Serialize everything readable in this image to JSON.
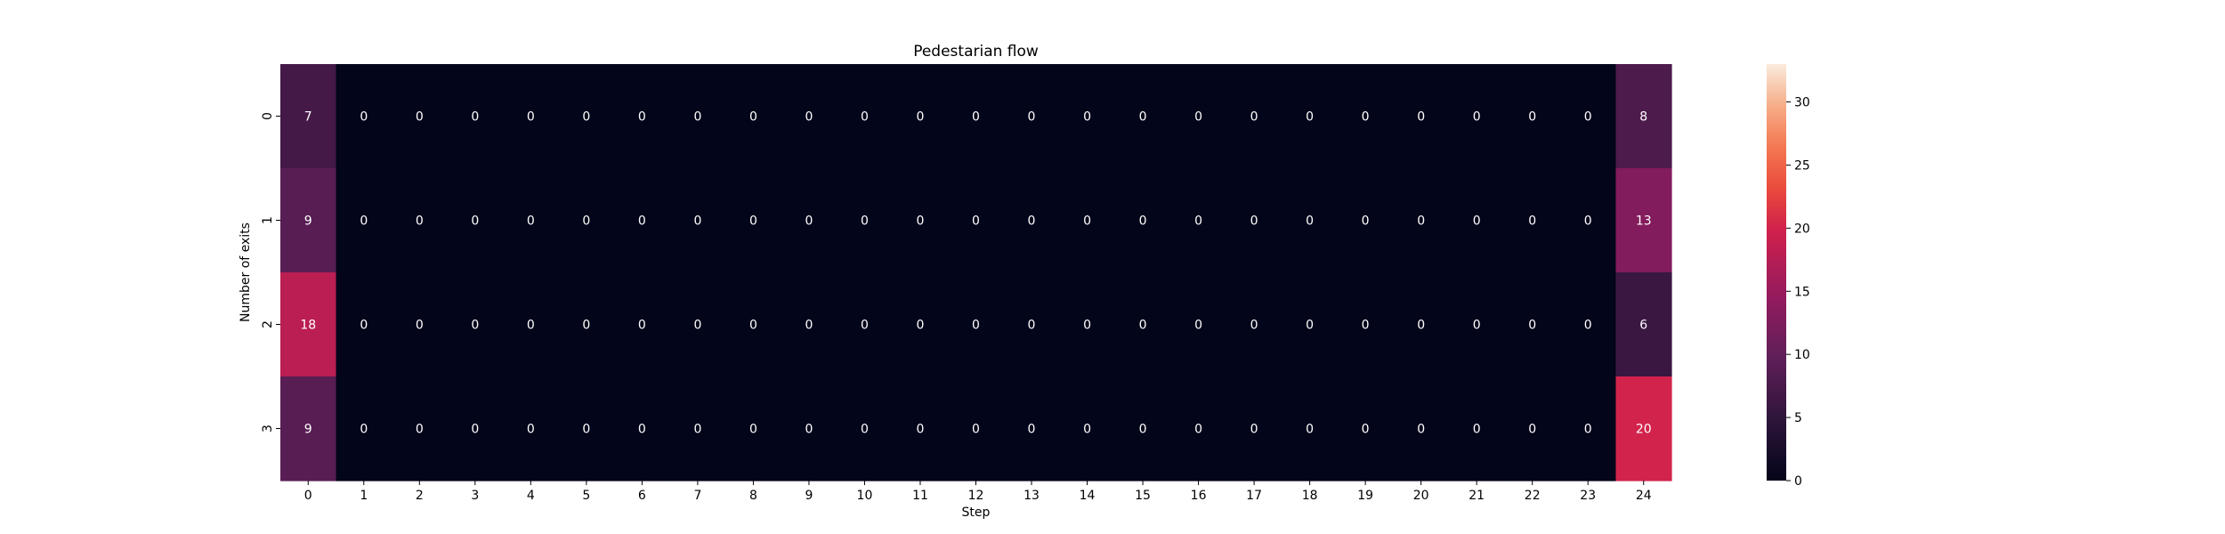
{
  "chart_data": {
    "type": "heatmap",
    "title": "Pedestarian flow",
    "xlabel": "Step",
    "ylabel": "Number of exits",
    "x_categories": [
      "0",
      "1",
      "2",
      "3",
      "4",
      "5",
      "6",
      "7",
      "8",
      "9",
      "10",
      "11",
      "12",
      "13",
      "14",
      "15",
      "16",
      "17",
      "18",
      "19",
      "20",
      "21",
      "22",
      "23",
      "24"
    ],
    "y_categories": [
      "0",
      "1",
      "2",
      "3"
    ],
    "values": [
      [
        7,
        0,
        0,
        0,
        0,
        0,
        0,
        0,
        0,
        0,
        0,
        0,
        0,
        0,
        0,
        0,
        0,
        0,
        0,
        0,
        0,
        0,
        0,
        0,
        8
      ],
      [
        9,
        0,
        0,
        0,
        0,
        0,
        0,
        0,
        0,
        0,
        0,
        0,
        0,
        0,
        0,
        0,
        0,
        0,
        0,
        0,
        0,
        0,
        0,
        0,
        13
      ],
      [
        18,
        0,
        0,
        0,
        0,
        0,
        0,
        0,
        0,
        0,
        0,
        0,
        0,
        0,
        0,
        0,
        0,
        0,
        0,
        0,
        0,
        0,
        0,
        0,
        6
      ],
      [
        9,
        0,
        0,
        0,
        0,
        0,
        0,
        0,
        0,
        0,
        0,
        0,
        0,
        0,
        0,
        0,
        0,
        0,
        0,
        0,
        0,
        0,
        0,
        0,
        20
      ]
    ],
    "annotated": true,
    "colormap": "rocket",
    "colorbar": {
      "range": [
        0,
        33
      ],
      "ticks": [
        0,
        5,
        10,
        15,
        20,
        25,
        30
      ]
    },
    "grid": false,
    "legend": "none"
  }
}
